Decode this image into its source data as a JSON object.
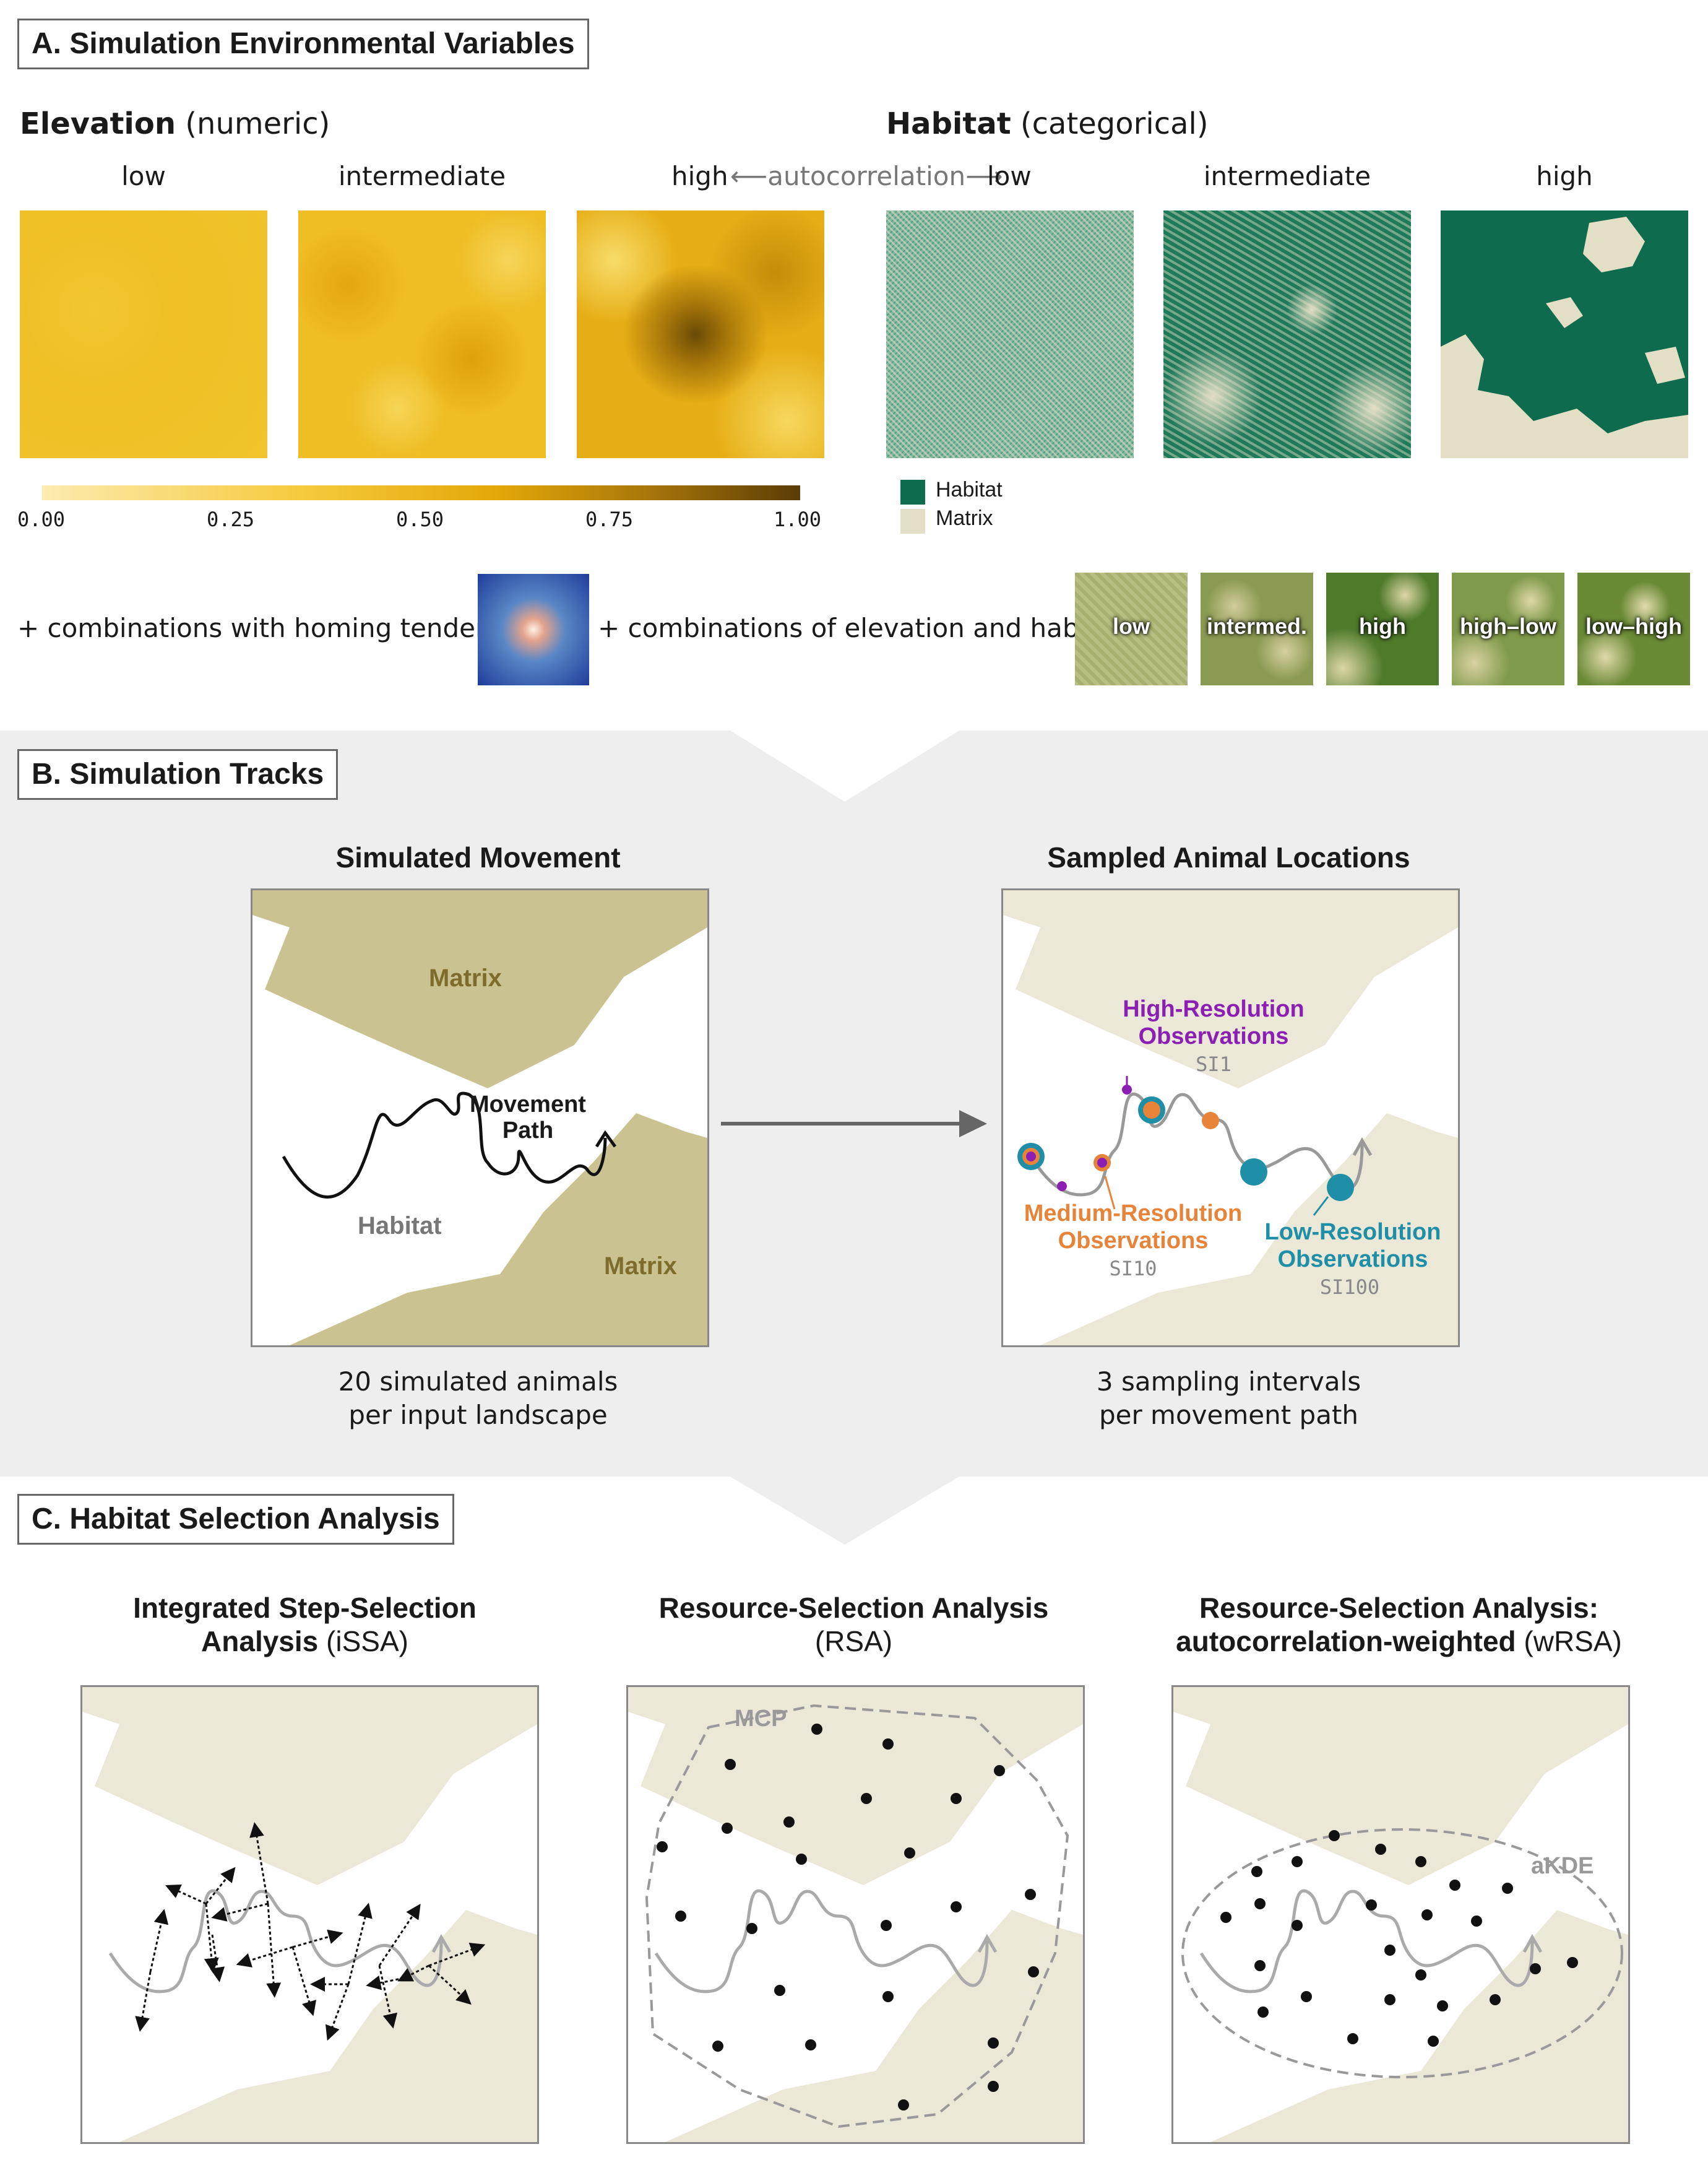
{
  "sectionA": {
    "title": "A. Simulation Environmental Variables",
    "elevation_heading": "Elevation",
    "elevation_type": "(numeric)",
    "habitat_heading": "Habitat",
    "habitat_type": "(categorical)",
    "elev_levels": [
      "low",
      "intermediate",
      "high"
    ],
    "habitat_levels": [
      "low",
      "intermediate",
      "high"
    ],
    "autocorr_word": "autocorrelation",
    "colorbar_ticks": [
      "0.00",
      "0.25",
      "0.50",
      "0.75",
      "1.00"
    ],
    "legend": [
      "Habitat",
      "Matrix"
    ],
    "homing_label": "+ combinations with homing tendency:",
    "combo_label": "+ combinations of elevation and habitat:",
    "combos": [
      "low",
      "intermed.",
      "high",
      "high–low",
      "low–high"
    ],
    "colors": {
      "elev_low": "#f9e08a",
      "elev_high": "#7a5400",
      "habitat": "#0e6b4e",
      "matrix": "#e3dfc6"
    }
  },
  "sectionB": {
    "title": "B. Simulation Tracks",
    "left_title": "Simulated Movement",
    "matrix_label": "Matrix",
    "habitat_label": "Habitat",
    "path_label_1": "Movement",
    "path_label_2": "Path",
    "left_caption_1": "20 simulated animals",
    "left_caption_2": "per input landscape",
    "right_title": "Sampled Animal Locations",
    "high_res_1": "High-Resolution",
    "high_res_2": "Observations",
    "si1": "SI1",
    "med_res_1": "Medium-Resolution",
    "med_res_2": "Observations",
    "si10": "SI10",
    "low_res_1": "Low-Resolution",
    "low_res_2": "Observations",
    "si100": "SI100",
    "right_caption_1": "3 sampling intervals",
    "right_caption_2": "per movement path",
    "colors": {
      "high": "#8b1fb3",
      "medium": "#e8843a",
      "low": "#1f8fa8"
    }
  },
  "sectionC": {
    "title": "C. Habitat Selection Analysis",
    "issa_line1": "Integrated Step-Selection",
    "issa_bold": "Analysis",
    "issa_abbr": "(iSSA)",
    "rsa_line1": "Resource-Selection Analysis",
    "rsa_abbr": "(RSA)",
    "wrsa_line1": "Resource-Selection Analysis:",
    "wrsa_bold": "autocorrelation-weighted",
    "wrsa_abbr": "(wRSA)",
    "mcp_label": "MCP",
    "akde_label": "aKDE"
  }
}
